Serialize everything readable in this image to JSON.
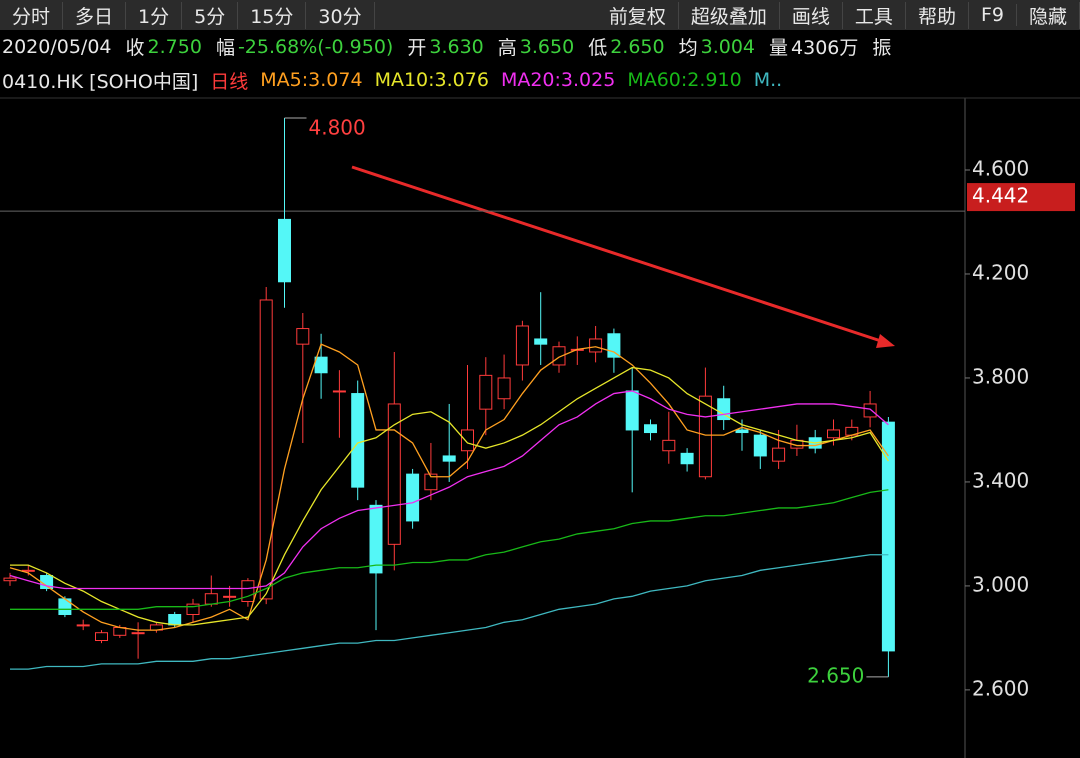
{
  "toolbar": {
    "tabs": [
      "分时",
      "多日",
      "1分",
      "5分",
      "15分",
      "30分"
    ],
    "menu": [
      "前复权",
      "超级叠加",
      "画线",
      "工具",
      "帮助",
      "F9",
      "隐藏"
    ]
  },
  "info_bar": {
    "date": "2020/05/04",
    "items": [
      {
        "label": "收",
        "value": "2.750",
        "color": "#3dd13d"
      },
      {
        "label": "幅",
        "value": "-25.68%(-0.950)",
        "color": "#3dd13d"
      },
      {
        "label": "开",
        "value": "3.630",
        "color": "#3dd13d"
      },
      {
        "label": "高",
        "value": "3.650",
        "color": "#3dd13d"
      },
      {
        "label": "低",
        "value": "2.650",
        "color": "#3dd13d"
      },
      {
        "label": "均",
        "value": "3.004",
        "color": "#3dd13d"
      },
      {
        "label": "量",
        "value": "4306万",
        "color": "#e8e8e8"
      }
    ],
    "last": "振"
  },
  "chart_data": {
    "type": "candlestick",
    "title": "0410.HK [SOHO中国]",
    "period": "日线",
    "up_color": "#ff3b3b",
    "down_color": "#54f7f7",
    "open": [
      3.02,
      3.06,
      3.04,
      2.95,
      2.85,
      2.79,
      2.81,
      2.82,
      2.83,
      2.89,
      2.89,
      2.93,
      2.96,
      2.94,
      2.95,
      4.41,
      3.93,
      3.88,
      3.75,
      3.74,
      3.31,
      3.16,
      3.43,
      3.37,
      3.5,
      3.52,
      3.68,
      3.72,
      3.85,
      3.95,
      3.85,
      3.91,
      3.9,
      3.97,
      3.75,
      3.62,
      3.52,
      3.51,
      3.42,
      3.72,
      3.6,
      3.58,
      3.48,
      3.53,
      3.57,
      3.57,
      3.58,
      3.65,
      3.63
    ],
    "high": [
      3.05,
      3.08,
      3.05,
      2.96,
      2.87,
      2.83,
      2.85,
      2.86,
      2.86,
      2.9,
      2.95,
      3.04,
      3.0,
      3.03,
      4.15,
      4.8,
      4.05,
      3.97,
      3.83,
      3.79,
      3.33,
      3.9,
      3.45,
      3.55,
      3.7,
      3.85,
      3.88,
      3.89,
      4.02,
      4.13,
      3.94,
      3.96,
      4.0,
      3.99,
      3.84,
      3.64,
      3.67,
      3.53,
      3.84,
      3.77,
      3.64,
      3.6,
      3.6,
      3.62,
      3.6,
      3.64,
      3.64,
      3.75,
      3.65
    ],
    "low": [
      3.0,
      3.04,
      2.98,
      2.88,
      2.83,
      2.78,
      2.8,
      2.72,
      2.82,
      2.84,
      2.86,
      2.92,
      2.92,
      2.92,
      2.93,
      4.07,
      3.55,
      3.72,
      3.57,
      3.33,
      2.83,
      3.06,
      3.22,
      3.33,
      3.4,
      3.45,
      3.58,
      3.68,
      3.79,
      3.85,
      3.82,
      3.85,
      3.86,
      3.82,
      3.36,
      3.56,
      3.47,
      3.44,
      3.41,
      3.6,
      3.52,
      3.45,
      3.45,
      3.5,
      3.51,
      3.54,
      3.56,
      3.61,
      2.65
    ],
    "close": [
      3.03,
      3.06,
      2.99,
      2.89,
      2.85,
      2.82,
      2.84,
      2.82,
      2.85,
      2.85,
      2.93,
      2.97,
      2.96,
      3.02,
      4.1,
      4.17,
      3.99,
      3.82,
      3.75,
      3.38,
      3.05,
      3.7,
      3.25,
      3.43,
      3.48,
      3.6,
      3.81,
      3.8,
      4.0,
      3.93,
      3.92,
      3.91,
      3.95,
      3.88,
      3.6,
      3.59,
      3.56,
      3.47,
      3.73,
      3.64,
      3.59,
      3.5,
      3.53,
      3.56,
      3.53,
      3.6,
      3.61,
      3.7,
      2.75
    ],
    "series": [
      {
        "name": "MA5:3.074",
        "color": "#ffa020",
        "values": [
          3.07,
          3.05,
          3.0,
          2.95,
          2.9,
          2.86,
          2.84,
          2.83,
          2.83,
          2.84,
          2.86,
          2.88,
          2.91,
          2.87,
          3.1,
          3.45,
          3.72,
          3.93,
          3.9,
          3.85,
          3.6,
          3.6,
          3.55,
          3.42,
          3.42,
          3.48,
          3.6,
          3.64,
          3.74,
          3.83,
          3.88,
          3.91,
          3.92,
          3.9,
          3.85,
          3.78,
          3.7,
          3.6,
          3.58,
          3.58,
          3.61,
          3.59,
          3.56,
          3.54,
          3.54,
          3.56,
          3.58,
          3.6,
          3.5
        ]
      },
      {
        "name": "MA10:3.076",
        "color": "#e6e62a",
        "values": [
          3.08,
          3.08,
          3.05,
          3.01,
          2.98,
          2.94,
          2.91,
          2.88,
          2.86,
          2.85,
          2.85,
          2.86,
          2.87,
          2.88,
          2.97,
          3.12,
          3.25,
          3.37,
          3.46,
          3.55,
          3.57,
          3.62,
          3.66,
          3.67,
          3.63,
          3.55,
          3.53,
          3.55,
          3.58,
          3.62,
          3.67,
          3.72,
          3.76,
          3.8,
          3.84,
          3.83,
          3.8,
          3.74,
          3.7,
          3.66,
          3.62,
          3.6,
          3.58,
          3.56,
          3.55,
          3.56,
          3.57,
          3.59,
          3.48
        ]
      },
      {
        "name": "MA20:3.025",
        "color": "#f030f0",
        "values": [
          3.04,
          3.02,
          3.0,
          2.99,
          2.99,
          2.99,
          2.99,
          2.99,
          2.99,
          2.99,
          2.99,
          2.99,
          2.99,
          2.99,
          3.0,
          3.05,
          3.15,
          3.22,
          3.26,
          3.29,
          3.3,
          3.31,
          3.32,
          3.35,
          3.38,
          3.42,
          3.44,
          3.46,
          3.5,
          3.56,
          3.62,
          3.65,
          3.7,
          3.74,
          3.75,
          3.72,
          3.68,
          3.66,
          3.65,
          3.66,
          3.67,
          3.68,
          3.69,
          3.7,
          3.7,
          3.7,
          3.69,
          3.68,
          3.62
        ]
      },
      {
        "name": "MA60:2.910",
        "color": "#18b818",
        "values": [
          2.91,
          2.91,
          2.91,
          2.91,
          2.91,
          2.91,
          2.91,
          2.91,
          2.92,
          2.92,
          2.92,
          2.93,
          2.94,
          2.96,
          2.99,
          3.03,
          3.05,
          3.06,
          3.07,
          3.07,
          3.08,
          3.08,
          3.09,
          3.09,
          3.1,
          3.1,
          3.12,
          3.13,
          3.15,
          3.17,
          3.18,
          3.2,
          3.21,
          3.22,
          3.24,
          3.25,
          3.25,
          3.26,
          3.27,
          3.27,
          3.28,
          3.29,
          3.3,
          3.3,
          3.31,
          3.32,
          3.34,
          3.36,
          3.37
        ]
      },
      {
        "name": "M..",
        "color": "#3fb8c0",
        "values": [
          2.68,
          2.68,
          2.69,
          2.69,
          2.69,
          2.7,
          2.7,
          2.7,
          2.71,
          2.71,
          2.71,
          2.72,
          2.72,
          2.73,
          2.74,
          2.75,
          2.76,
          2.77,
          2.78,
          2.78,
          2.79,
          2.79,
          2.8,
          2.81,
          2.82,
          2.83,
          2.84,
          2.86,
          2.87,
          2.89,
          2.91,
          2.92,
          2.93,
          2.95,
          2.96,
          2.98,
          2.99,
          3.0,
          3.02,
          3.03,
          3.04,
          3.06,
          3.07,
          3.08,
          3.09,
          3.1,
          3.11,
          3.12,
          3.12
        ]
      }
    ],
    "ylim": [
      2.338,
      4.877
    ],
    "yticks": [
      {
        "value": 4.6,
        "label": "4.600"
      },
      {
        "value": 4.2,
        "label": "4.200"
      },
      {
        "value": 3.8,
        "label": "3.800"
      },
      {
        "value": 3.4,
        "label": "3.400"
      },
      {
        "value": 3.0,
        "label": "3.000"
      },
      {
        "value": 2.6,
        "label": "2.600"
      }
    ],
    "price_line": {
      "value": 4.442,
      "label": "4.442"
    },
    "annotations": [
      {
        "index": 15,
        "value": 4.8,
        "label": "4.800",
        "color": "#ff4040"
      },
      {
        "index": 48,
        "value": 2.65,
        "label": "2.650",
        "color": "#3dd13d"
      }
    ]
  }
}
